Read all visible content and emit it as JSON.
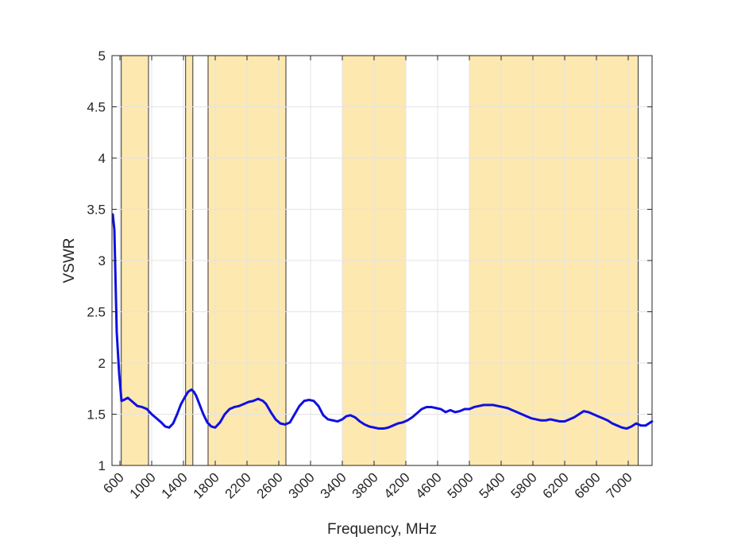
{
  "chart_data": {
    "type": "line",
    "xlabel": "Frequency, MHz",
    "ylabel": "VSWR",
    "xlim": [
      500,
      7300
    ],
    "ylim": [
      1,
      5
    ],
    "grid": true,
    "xticks": [
      600,
      1000,
      1400,
      1800,
      2200,
      2600,
      3000,
      3400,
      3800,
      4200,
      4600,
      5000,
      5400,
      5800,
      6200,
      6600,
      7000
    ],
    "yticks": [
      1,
      1.5,
      2,
      2.5,
      3,
      3.5,
      4,
      4.5,
      5
    ],
    "shaded_bands": [
      [
        617,
        960
      ],
      [
        1427,
        1518
      ],
      [
        1710,
        2690
      ],
      [
        3400,
        4200
      ],
      [
        5000,
        7125
      ]
    ],
    "colors": {
      "line": "#1010e0",
      "band_fill": "#fde8b0",
      "band_edge": "#333333",
      "grid": "#e3e3e3",
      "axis": "#262626"
    },
    "series": [
      {
        "x": [
          510,
          530,
          560,
          590,
          620,
          650,
          700,
          760,
          820,
          880,
          940,
          1000,
          1060,
          1120,
          1170,
          1220,
          1270,
          1320,
          1370,
          1420,
          1460,
          1500,
          1530,
          1560,
          1600,
          1650,
          1700,
          1750,
          1800,
          1860,
          1920,
          1980,
          2040,
          2100,
          2160,
          2220,
          2280,
          2340,
          2400,
          2440,
          2500,
          2560,
          2620,
          2680,
          2740,
          2800,
          2860,
          2920,
          2980,
          3040,
          3100,
          3160,
          3220,
          3280,
          3340,
          3400,
          3450,
          3500,
          3560,
          3620,
          3680,
          3740,
          3800,
          3860,
          3920,
          3980,
          4040,
          4100,
          4160,
          4220,
          4280,
          4340,
          4400,
          4460,
          4520,
          4580,
          4640,
          4700,
          4760,
          4820,
          4880,
          4940,
          5000,
          5060,
          5120,
          5180,
          5240,
          5300,
          5360,
          5420,
          5480,
          5540,
          5600,
          5660,
          5720,
          5780,
          5840,
          5900,
          5960,
          6020,
          6080,
          6140,
          6200,
          6260,
          6320,
          6380,
          6440,
          6500,
          6560,
          6620,
          6680,
          6740,
          6800,
          6860,
          6920,
          6980,
          7040,
          7100,
          7160,
          7220,
          7280,
          7300
        ],
        "y": [
          3.45,
          3.3,
          2.3,
          1.9,
          1.63,
          1.64,
          1.66,
          1.62,
          1.58,
          1.57,
          1.55,
          1.5,
          1.46,
          1.42,
          1.38,
          1.37,
          1.41,
          1.5,
          1.6,
          1.67,
          1.72,
          1.74,
          1.72,
          1.68,
          1.6,
          1.5,
          1.42,
          1.38,
          1.37,
          1.42,
          1.5,
          1.55,
          1.57,
          1.58,
          1.6,
          1.62,
          1.63,
          1.65,
          1.63,
          1.6,
          1.52,
          1.45,
          1.41,
          1.4,
          1.42,
          1.5,
          1.58,
          1.63,
          1.64,
          1.63,
          1.58,
          1.49,
          1.45,
          1.44,
          1.43,
          1.45,
          1.48,
          1.49,
          1.47,
          1.43,
          1.4,
          1.38,
          1.37,
          1.36,
          1.36,
          1.37,
          1.39,
          1.41,
          1.42,
          1.44,
          1.47,
          1.51,
          1.55,
          1.57,
          1.57,
          1.56,
          1.55,
          1.52,
          1.54,
          1.52,
          1.53,
          1.55,
          1.55,
          1.57,
          1.58,
          1.59,
          1.59,
          1.59,
          1.58,
          1.57,
          1.56,
          1.54,
          1.52,
          1.5,
          1.48,
          1.46,
          1.45,
          1.44,
          1.44,
          1.45,
          1.44,
          1.43,
          1.43,
          1.45,
          1.47,
          1.5,
          1.53,
          1.52,
          1.5,
          1.48,
          1.46,
          1.44,
          1.41,
          1.39,
          1.37,
          1.36,
          1.38,
          1.41,
          1.39,
          1.39,
          1.42,
          1.43
        ]
      }
    ]
  }
}
